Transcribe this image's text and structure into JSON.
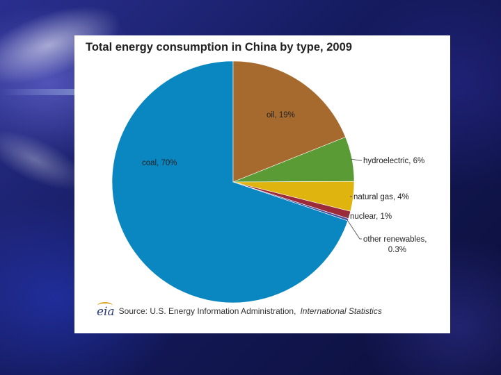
{
  "chart_data": {
    "type": "pie",
    "title": "Total energy consumption in China by type, 2009",
    "slices": [
      {
        "name": "coal",
        "label": "coal, 70%",
        "value": 70,
        "color": "#0a87c1"
      },
      {
        "name": "oil",
        "label": "oil, 19%",
        "value": 19,
        "color": "#a66a2e"
      },
      {
        "name": "hydroelectric",
        "label": "hydroelectric, 6%",
        "value": 6,
        "color": "#5b9b35"
      },
      {
        "name": "natural gas",
        "label": "natural gas, 4%",
        "value": 4,
        "color": "#e0b40f"
      },
      {
        "name": "nuclear",
        "label": "nuclear, 1%",
        "value": 1,
        "color": "#9c2b39"
      },
      {
        "name": "other renewables",
        "label": "other renewables, 0.3%",
        "label_lines": [
          "other renewables,",
          "0.3%"
        ],
        "value": 0.3,
        "color": "#4a4f9e"
      }
    ]
  },
  "source": {
    "logo_text": "eia",
    "prefix": "Source: U.S. Energy Information Administration,",
    "italic": "International Statistics"
  }
}
